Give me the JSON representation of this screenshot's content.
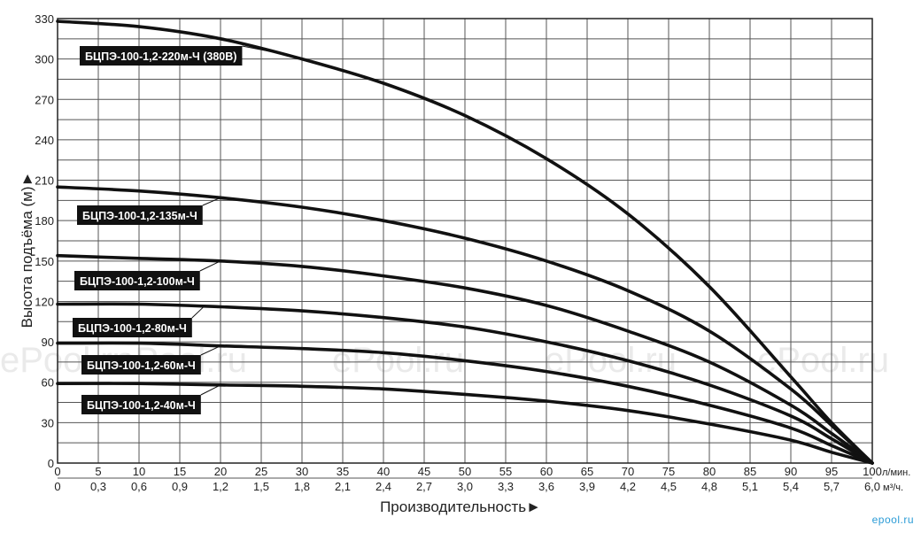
{
  "chart_data": {
    "type": "line",
    "x": [
      0,
      10,
      20,
      30,
      40,
      50,
      60,
      70,
      80,
      90,
      95,
      100
    ],
    "x_ticks": [
      0,
      5,
      10,
      15,
      20,
      25,
      30,
      35,
      40,
      45,
      50,
      55,
      60,
      65,
      70,
      75,
      80,
      85,
      90,
      95,
      100
    ],
    "x2_ticks": [
      "0",
      "0,3",
      "0,6",
      "0,9",
      "1,2",
      "1,5",
      "1,8",
      "2,1",
      "2,4",
      "2,7",
      "3,0",
      "3,3",
      "3,6",
      "3,9",
      "4,2",
      "4,5",
      "4,8",
      "5,1",
      "5,4",
      "5,7",
      "6,0"
    ],
    "x_unit": "л/мин.",
    "x2_unit": "м³/ч.",
    "y_ticks": [
      0,
      30,
      60,
      90,
      120,
      150,
      180,
      210,
      240,
      270,
      300,
      330
    ],
    "xlim": [
      0,
      100
    ],
    "ylim": [
      0,
      330
    ],
    "xlabel": "Производительность►",
    "ylabel": "Высота подъёма (м)►",
    "grid": true,
    "series": [
      {
        "name": "БЦПЭ-100-1,2-220м-Ч (380В)",
        "values": [
          328,
          324,
          315,
          300,
          282,
          258,
          226,
          185,
          131,
          64,
          30,
          0
        ]
      },
      {
        "name": "БЦПЭ-100-1,2-135м-Ч",
        "values": [
          205,
          202,
          197,
          190,
          180,
          167,
          150,
          128,
          98,
          55,
          28,
          0
        ]
      },
      {
        "name": "БЦПЭ-100-1,2-100м-Ч",
        "values": [
          154,
          152,
          150,
          146,
          139,
          130,
          117,
          98,
          75,
          43,
          22,
          0
        ]
      },
      {
        "name": "БЦПЭ-100-1,2-80м-Ч",
        "values": [
          118,
          118,
          116,
          113,
          108,
          101,
          90,
          76,
          58,
          35,
          18,
          0
        ]
      },
      {
        "name": "БЦПЭ-100-1,2-60м-Ч",
        "values": [
          89,
          89,
          87,
          85,
          82,
          76,
          68,
          57,
          43,
          26,
          13,
          0
        ]
      },
      {
        "name": "БЦПЭ-100-1,2-40м-Ч",
        "values": [
          59,
          59,
          58,
          57,
          55,
          51,
          46,
          39,
          29,
          17,
          8,
          0
        ]
      }
    ],
    "label_anchor_x": [
      27,
      20,
      20,
      18,
      20,
      20
    ],
    "color": "#111111",
    "watermark": "ePool.ru"
  },
  "footer": {
    "logo": "epool.ru"
  }
}
